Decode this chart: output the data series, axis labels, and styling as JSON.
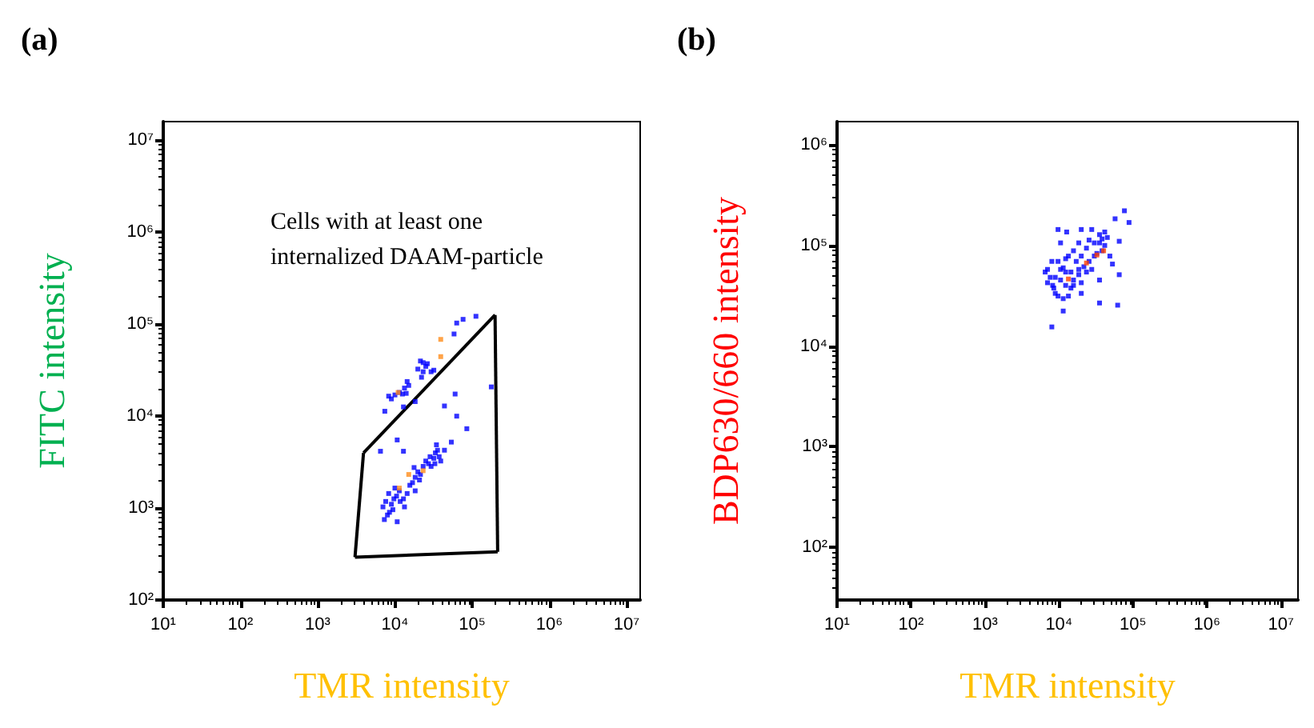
{
  "chart_data": [
    {
      "type": "scatter",
      "title": "(a)",
      "xlabel": "TMR intensity",
      "ylabel": "FITC intensity",
      "annotations": [
        "Cells with at least one\ninternalized DAAM-particle"
      ],
      "log": "xy",
      "grid": false,
      "marker": "square",
      "xlim": [
        10,
        15000000
      ],
      "ylim": [
        100,
        16000000
      ],
      "xticks": [
        {
          "value": 10,
          "label": "10¹"
        },
        {
          "value": 100,
          "label": "10²"
        },
        {
          "value": 1000,
          "label": "10³"
        },
        {
          "value": 10000,
          "label": "10⁴"
        },
        {
          "value": 100000,
          "label": "10⁵"
        },
        {
          "value": 1000000,
          "label": "10⁶"
        },
        {
          "value": 10000000,
          "label": "10⁷"
        }
      ],
      "yticks": [
        {
          "value": 100,
          "label": "10²"
        },
        {
          "value": 1000,
          "label": "10³"
        },
        {
          "value": 10000,
          "label": "10⁴"
        },
        {
          "value": 100000,
          "label": "10⁵"
        },
        {
          "value": 1000000,
          "label": "10⁶"
        },
        {
          "value": 10000000,
          "label": "10⁷"
        }
      ],
      "series": [
        {
          "color": "#0000ff",
          "x": [
            7400,
            8300,
            9000,
            10000,
            11400,
            12500,
            14000,
            13300,
            15100,
            12900,
            18300,
            19800,
            21400,
            23200,
            25100,
            26300,
            23200,
            22100,
            14400,
            29400,
            31900,
            58300,
            63100,
            76300,
            112000,
            60200,
            43800,
            63100,
            85300,
            177000,
            6500,
            10700,
            12900,
            7000,
            7600,
            8300,
            9000,
            10000,
            10500,
            11400,
            11700,
            12900,
            14400,
            13300,
            9400,
            7300,
            8000,
            10700,
            15600,
            16900,
            18300,
            19800,
            21400,
            23200,
            25100,
            27200,
            29400,
            31900,
            33400,
            35600,
            37400,
            39200,
            34500,
            43800,
            53800,
            8500,
            9700,
            18300,
            20800,
            28500,
            32900,
            17700
          ],
          "values": [
            11300,
            16500,
            15400,
            17000,
            18100,
            17400,
            17700,
            20200,
            21600,
            12600,
            14400,
            32500,
            39800,
            38200,
            34800,
            37200,
            30400,
            26500,
            23800,
            30400,
            31600,
            78300,
            103000,
            113000,
            122000,
            17400,
            12900,
            10000,
            7300,
            20800,
            4150,
            5510,
            4150,
            1030,
            1180,
            1440,
            1100,
            1650,
            1350,
            1540,
            1180,
            1260,
            1440,
            1030,
            960,
            750,
            840,
            710,
            1770,
            1890,
            2160,
            2480,
            2320,
            2840,
            3250,
            3040,
            2840,
            3480,
            3980,
            4260,
            3620,
            3250,
            4880,
            4260,
            5220,
            900,
            1260,
            1540,
            2020,
            3620,
            3040,
            2760
          ]
        },
        {
          "color": "#ff8c1a",
          "x": [
            39200,
            39200,
            11000,
            15100,
            11400,
            23200
          ],
          "values": [
            68400,
            44400,
            18100,
            2320,
            1650,
            2550
          ]
        },
        {
          "type": "line",
          "color": "#000000",
          "marker": "none",
          "x": [
            3920,
            198000
          ],
          "values": [
            3980,
            126000
          ]
        },
        {
          "type": "line",
          "color": "#000000",
          "marker": "none",
          "x": [
            198000,
            214000
          ],
          "values": [
            126000,
            334
          ]
        },
        {
          "type": "line",
          "color": "#000000",
          "marker": "none",
          "x": [
            3040,
            214000
          ],
          "values": [
            292,
            334
          ]
        },
        {
          "type": "line",
          "color": "#000000",
          "marker": "none",
          "x": [
            3040,
            3920
          ],
          "values": [
            292,
            3980
          ]
        }
      ]
    },
    {
      "type": "scatter",
      "title": "(b)",
      "xlabel": "TMR intensity",
      "ylabel": "BDP630/660 intensity",
      "log": "xy",
      "grid": false,
      "marker": "square",
      "xlim": [
        10,
        17000000
      ],
      "ylim": [
        30,
        1700000
      ],
      "xticks": [
        {
          "value": 10,
          "label": "10¹"
        },
        {
          "value": 100,
          "label": "10²"
        },
        {
          "value": 1000,
          "label": "10³"
        },
        {
          "value": 10000,
          "label": "10⁴"
        },
        {
          "value": 100000,
          "label": "10⁵"
        },
        {
          "value": 1000000,
          "label": "10⁶"
        },
        {
          "value": 10000000,
          "label": "10⁷"
        }
      ],
      "yticks": [
        {
          "value": 100,
          "label": "10²"
        },
        {
          "value": 1000,
          "label": "10³"
        },
        {
          "value": 10000,
          "label": "10⁴"
        },
        {
          "value": 100000,
          "label": "10⁵"
        },
        {
          "value": 1000000,
          "label": "10⁶"
        }
      ],
      "series": [
        {
          "color": "#0000ff",
          "x": [
            8000,
            11400,
            9700,
            12700,
            20000,
            27700,
            41500,
            38200,
            35300,
            45000,
            57300,
            76600,
            88500,
            65200,
            30000,
            23500,
            18500,
            10500,
            15700,
            13400,
            9700,
            12300,
            8000,
            7000,
            6500,
            7600,
            8200,
            8900,
            9700,
            11400,
            13400,
            14500,
            15700,
            18500,
            20000,
            21700,
            23500,
            25500,
            30000,
            32500,
            38200,
            41500,
            48700,
            52800,
            65200,
            7000,
            8500,
            10500,
            12300,
            14500,
            17100,
            20000,
            27700,
            35300,
            20000,
            35300,
            62100,
            10500,
            12300,
            15700,
            18500,
            25500,
            35300,
            8900,
            11400
          ],
          "values": [
            15500,
            22300,
            144000,
            136000,
            144000,
            144000,
            136000,
            116000,
            128000,
            120000,
            184000,
            221000,
            169000,
            110000,
            106000,
            94000,
            106000,
            106000,
            88500,
            78400,
            69400,
            73800,
            69400,
            57800,
            54400,
            48200,
            40100,
            33400,
            31400,
            29600,
            31400,
            37700,
            45300,
            51200,
            42600,
            61400,
            54400,
            69400,
            78400,
            83300,
            88500,
            100000,
            78400,
            65300,
            51200,
            42600,
            37700,
            45300,
            54400,
            54400,
            69400,
            78400,
            57800,
            45300,
            33400,
            26800,
            25500,
            57800,
            40100,
            40100,
            57800,
            113000,
            106000,
            48200,
            59900
          ]
        },
        {
          "color": "#ff4000",
          "x": [
            13400,
            23500,
            32500,
            40100
          ],
          "values": [
            46400,
            66900,
            80300,
            88500
          ]
        }
      ]
    }
  ]
}
